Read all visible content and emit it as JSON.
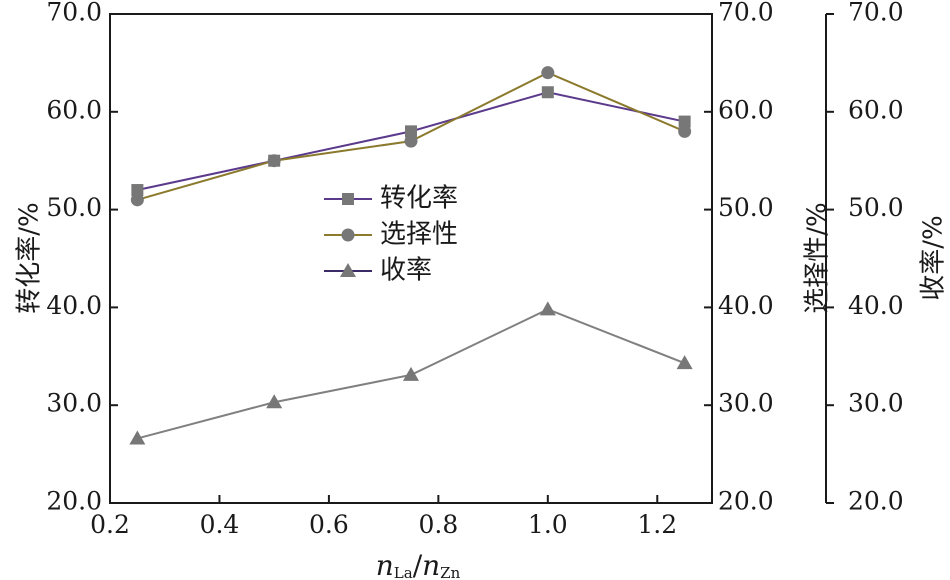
{
  "chart_data": {
    "type": "line",
    "x": [
      0.25,
      0.5,
      0.75,
      1.0,
      1.25
    ],
    "xlim": [
      0.2,
      1.3
    ],
    "ylim": [
      20,
      70
    ],
    "x_ticks": [
      "0.2",
      "0.4",
      "0.6",
      "0.8",
      "1.0",
      "1.2"
    ],
    "y_ticks": [
      "20.0",
      "30.0",
      "40.0",
      "50.0",
      "60.0",
      "70.0"
    ],
    "xlabel": {
      "main1": "n",
      "sub1": "La",
      "sep": "/",
      "main2": "n",
      "sub2": "Zn"
    },
    "ylabel_left": "转化率/%",
    "ylabel_right1": "选择性/%",
    "ylabel_right2": "收率/%",
    "series": [
      {
        "name": "转化率",
        "marker": "square",
        "line_color": "#5b3a8c",
        "marker_color": "#777777",
        "values": [
          52,
          55,
          58,
          62,
          59
        ]
      },
      {
        "name": "选择性",
        "marker": "circle",
        "line_color": "#8b7a2c",
        "marker_color": "#777777",
        "values": [
          51,
          55,
          57,
          64,
          58
        ]
      },
      {
        "name": "收率",
        "marker": "triangle",
        "line_color": "#808080",
        "marker_color": "#777777",
        "legend_line_color": "#3a2a66",
        "values": [
          26.6,
          30.3,
          33.1,
          39.8,
          34.3
        ]
      }
    ],
    "legend_position": "center",
    "grid": false
  }
}
